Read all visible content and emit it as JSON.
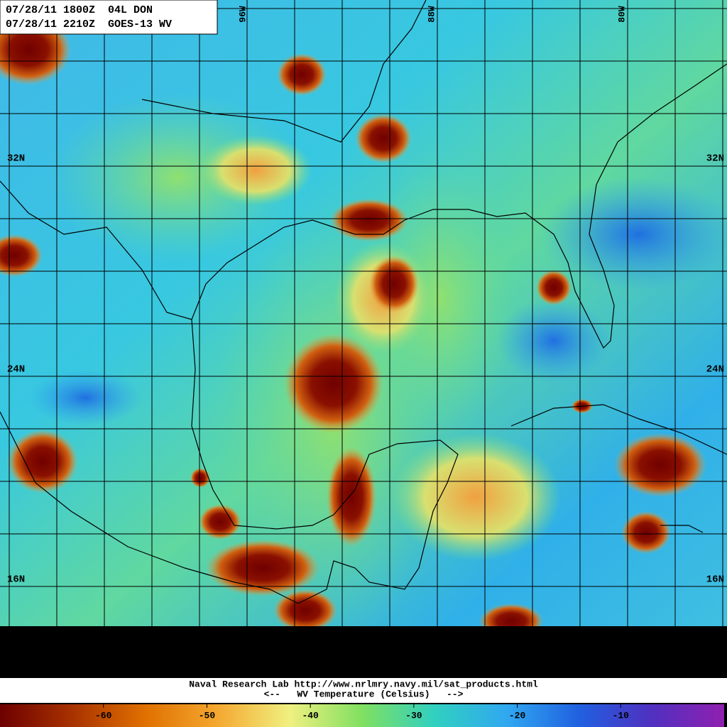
{
  "header": {
    "line1": "07/28/11 1800Z  04L DON",
    "line2": "07/28/11 2210Z  GOES-13 WV"
  },
  "longitude_labels": [
    "96W",
    "88W",
    "80W"
  ],
  "latitude_labels": [
    "32N",
    "24N",
    "16N"
  ],
  "footer": {
    "credit": "Naval Research Lab http://www.nrlmry.navy.mil/sat_products.html",
    "caption": "<--   WV Temperature (Celsius)   -->"
  },
  "colorbar": {
    "lim": [
      -70,
      0
    ],
    "ticks": [
      -60,
      -50,
      -40,
      -30,
      -20,
      -10
    ],
    "colors": [
      "#6e0000",
      "#a83200",
      "#e07000",
      "#f4a830",
      "#f0f080",
      "#80e060",
      "#30d0c0",
      "#30a8f0",
      "#2060e0",
      "#5030c0",
      "#9020b0"
    ]
  }
}
